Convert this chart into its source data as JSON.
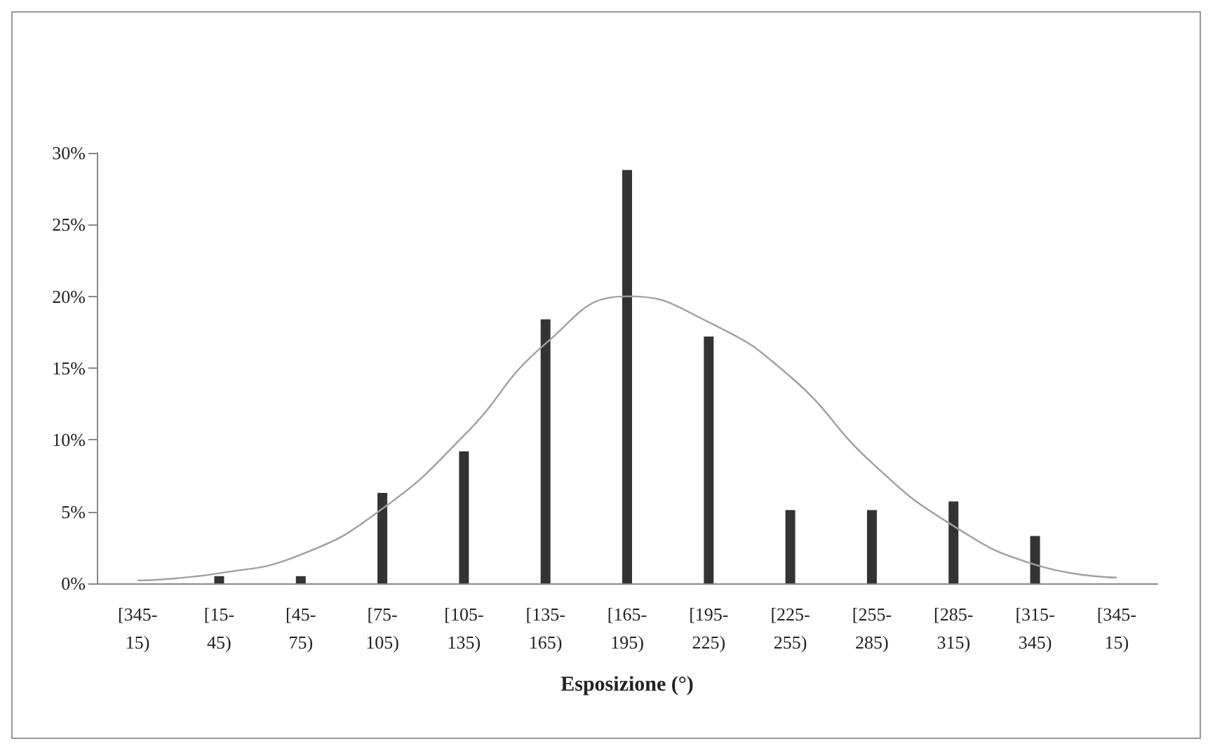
{
  "chart_data": {
    "type": "bar",
    "xlabel": "Esposizione (°)",
    "categories": [
      "[345-15)",
      "[15-45)",
      "[45-75)",
      "[75-105)",
      "[105-135)",
      "[135-165)",
      "[165-195)",
      "[195-225)",
      "[225-255)",
      "[255-285)",
      "[285-315)",
      "[315-345)",
      "[345-15)"
    ],
    "series": [
      {
        "color": "#333333",
        "values": [
          0,
          0.5,
          0.5,
          6.3,
          9.2,
          18.4,
          28.8,
          17.2,
          5.1,
          5.1,
          5.7,
          3.3,
          0
        ]
      },
      {
        "type": "line",
        "color": "#a0a0a0",
        "values": [
          0.2,
          0.7,
          2.0,
          5.2,
          10.3,
          16.7,
          20.0,
          18.2,
          14.4,
          8.4,
          4.0,
          1.3,
          0.4
        ]
      }
    ],
    "ylim": [
      0,
      30
    ],
    "yticks": [
      {
        "value": 0,
        "label": "0%"
      },
      {
        "value": 5,
        "label": "5%"
      },
      {
        "value": 10,
        "label": "10%"
      },
      {
        "value": 15,
        "label": "15%"
      },
      {
        "value": 20,
        "label": "20%"
      },
      {
        "value": 25,
        "label": "25%"
      },
      {
        "value": 30,
        "label": "30%"
      }
    ],
    "grid": false,
    "marker": "none"
  }
}
